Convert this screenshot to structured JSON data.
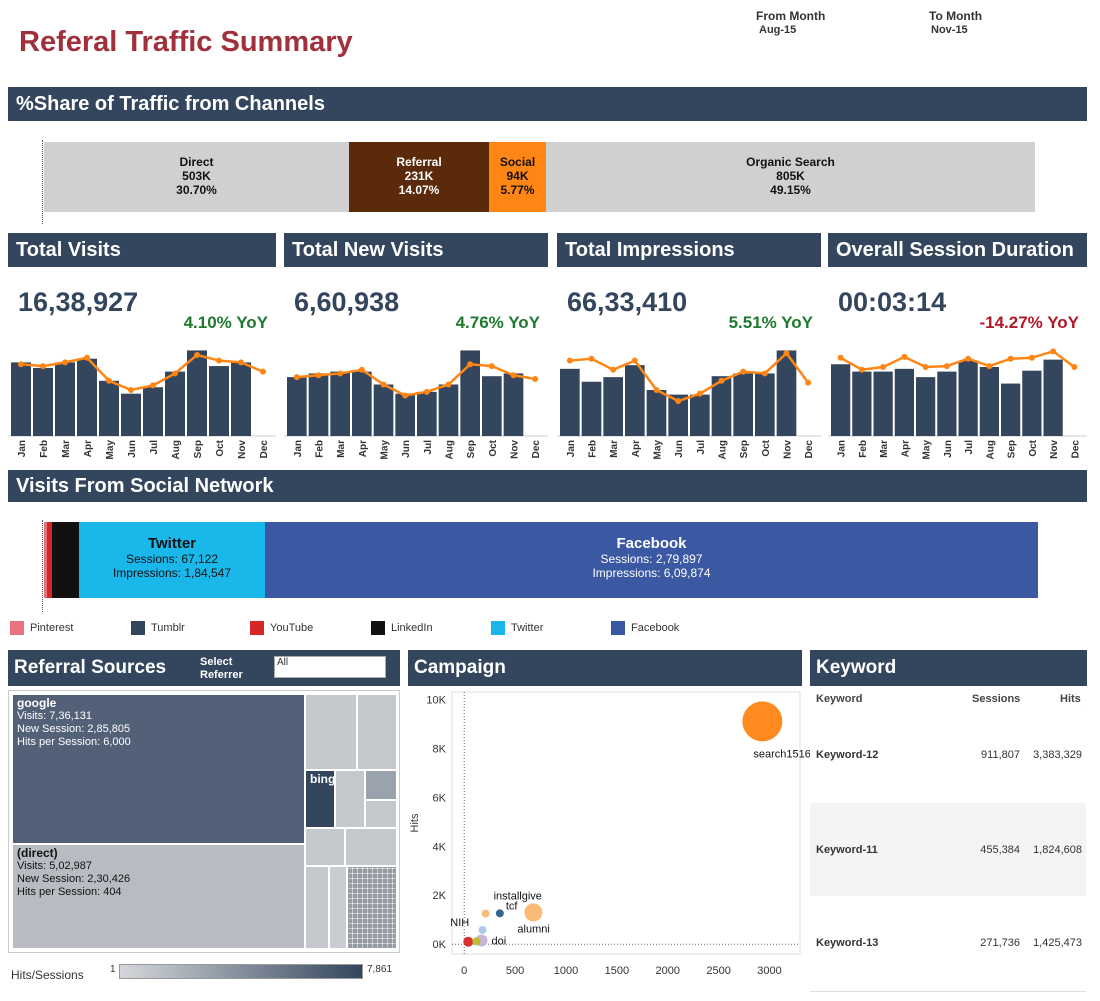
{
  "title": "Referal Traffic Summary",
  "from_month": {
    "label": "From Month",
    "value": "Aug-15"
  },
  "to_month": {
    "label": "To Month",
    "value": "Nov-15"
  },
  "share_section": {
    "header": "%Share of Traffic from Channels",
    "segments": [
      {
        "name": "Direct",
        "value": "503K",
        "pct": "30.70%",
        "share": 30.7,
        "color": "#d0d0d0"
      },
      {
        "name": "Referral",
        "value": "231K",
        "pct": "14.07%",
        "share": 14.07,
        "color": "#5a2a0b"
      },
      {
        "name": "Social",
        "value": "94K",
        "pct": "5.77%",
        "share": 5.77,
        "color": "#ff8514"
      },
      {
        "name": "Organic Search",
        "value": "805K",
        "pct": "49.15%",
        "share": 49.15,
        "color": "#d0d0d0"
      }
    ]
  },
  "kpis": [
    {
      "title": "Total Visits",
      "value": "16,38,927",
      "yoy": "4.10% YoY",
      "yoy_color": "#1e7a2e"
    },
    {
      "title": "Total New Visits",
      "value": "6,60,938",
      "yoy": "4.76% YoY",
      "yoy_color": "#1e7a2e"
    },
    {
      "title": "Total Impressions",
      "value": "66,33,410",
      "yoy": "5.51% YoY",
      "yoy_color": "#1e7a2e"
    },
    {
      "title": "Overall Session Duration",
      "value": "00:03:14",
      "yoy": "-14.27% YoY",
      "yoy_color": "#b0182a"
    }
  ],
  "chart_data": [
    {
      "type": "bar",
      "categories": [
        "Jan",
        "Feb",
        "Mar",
        "Apr",
        "May",
        "Jun",
        "Jul",
        "Aug",
        "Sep",
        "Oct",
        "Nov",
        "Dec"
      ],
      "series": [
        {
          "values": [
            0.8,
            0.74,
            0.8,
            0.84,
            0.6,
            0.46,
            0.53,
            0.7,
            0.93,
            0.76,
            0.8,
            null
          ]
        },
        {
          "values": [
            0.78,
            0.76,
            0.8,
            0.85,
            0.6,
            0.5,
            0.55,
            0.68,
            0.88,
            0.82,
            0.8,
            0.7
          ]
        }
      ]
    },
    {
      "type": "bar",
      "categories": [
        "Jan",
        "Feb",
        "Mar",
        "Apr",
        "May",
        "Jun",
        "Jul",
        "Aug",
        "Sep",
        "Oct",
        "Nov",
        "Dec"
      ],
      "series": [
        {
          "values": [
            0.64,
            0.68,
            0.7,
            0.7,
            0.56,
            0.46,
            0.48,
            0.56,
            0.93,
            0.65,
            0.68,
            null
          ]
        },
        {
          "values": [
            0.64,
            0.66,
            0.68,
            0.72,
            0.56,
            0.44,
            0.48,
            0.56,
            0.78,
            0.76,
            0.66,
            0.62
          ]
        }
      ]
    },
    {
      "type": "bar",
      "categories": [
        "Jan",
        "Feb",
        "Mar",
        "Apr",
        "May",
        "Jun",
        "Jul",
        "Aug",
        "Sep",
        "Oct",
        "Nov",
        "Dec"
      ],
      "series": [
        {
          "values": [
            0.73,
            0.59,
            0.64,
            0.77,
            0.5,
            0.45,
            0.45,
            0.65,
            0.68,
            0.68,
            0.93,
            null
          ]
        },
        {
          "values": [
            0.82,
            0.84,
            0.72,
            0.82,
            0.5,
            0.38,
            0.46,
            0.6,
            0.7,
            0.68,
            0.9,
            0.58
          ]
        }
      ]
    },
    {
      "type": "bar",
      "categories": [
        "Jan",
        "Feb",
        "Mar",
        "Apr",
        "May",
        "Jun",
        "Jul",
        "Aug",
        "Sep",
        "Oct",
        "Nov",
        "Dec"
      ],
      "series": [
        {
          "values": [
            0.78,
            0.7,
            0.7,
            0.73,
            0.64,
            0.7,
            0.82,
            0.75,
            0.57,
            0.71,
            0.83,
            null
          ]
        },
        {
          "values": [
            0.85,
            0.72,
            0.75,
            0.86,
            0.75,
            0.76,
            0.84,
            0.76,
            0.84,
            0.85,
            0.92,
            0.75
          ]
        }
      ]
    },
    {
      "type": "scatter",
      "xlabel": "",
      "ylabel": "Hits",
      "xlim": [
        -120,
        3300
      ],
      "ylim": [
        -400,
        10300
      ],
      "x_ticks": [
        "0",
        "500",
        "1000",
        "1500",
        "2000",
        "2500",
        "3000"
      ],
      "y_ticks": [
        "0K",
        "2K",
        "4K",
        "6K",
        "8K",
        "10K"
      ],
      "points": [
        {
          "label": "search1516",
          "x": 2930,
          "y": 9100,
          "color": "#ff8514",
          "size": 20
        },
        {
          "label": "alumni",
          "x": 680,
          "y": 1300,
          "color": "#fcb671",
          "size": 9
        },
        {
          "label": "tcf",
          "x": 350,
          "y": 1260,
          "color": "#2b5c8a",
          "size": 4
        },
        {
          "label": "installgive",
          "x": 210,
          "y": 1250,
          "color": "#fcb671",
          "size": 4
        },
        {
          "label": "NIH",
          "x": 40,
          "y": 100,
          "color": "#d62728",
          "size": 5
        },
        {
          "label": "doi",
          "x": 170,
          "y": 150,
          "color": "#c5b0d5",
          "size": 6
        },
        {
          "label": "",
          "x": 180,
          "y": 580,
          "color": "#aec7e8",
          "size": 4
        },
        {
          "label": "",
          "x": 120,
          "y": 120,
          "color": "#bcbd22",
          "size": 4
        }
      ]
    }
  ],
  "social_section": {
    "header": "Visits From Social Network",
    "bars": [
      {
        "name": "Twitter",
        "sessions": "Sessions: 67,122",
        "impressions": "Impressions: 1,84,547"
      },
      {
        "name": "Facebook",
        "sessions": "Sessions: 2,79,897",
        "impressions": "Impressions: 6,09,874"
      }
    ],
    "legend": [
      {
        "label": "Pinterest",
        "color": "#e8737e"
      },
      {
        "label": "Tumblr",
        "color": "#33465d"
      },
      {
        "label": "YouTube",
        "color": "#d62728"
      },
      {
        "label": "LinkedIn",
        "color": "#111111"
      },
      {
        "label": "Twitter",
        "color": "#1ab7ea"
      },
      {
        "label": "Facebook",
        "color": "#3b58a3"
      }
    ]
  },
  "referral": {
    "header": "Referral Sources",
    "select_label": "Select Referrer",
    "select_value": "All",
    "google": {
      "name": "google",
      "visits": "Visits: 7,36,131",
      "new": "New Session: 2,85,805",
      "hps": "Hits per Session: 6,000"
    },
    "bing": {
      "name": "bing"
    },
    "direct": {
      "name": "(direct)",
      "visits": "Visits: 5,02,987",
      "new": "New Session: 2,30,426",
      "hps": "Hits per Session: 404"
    },
    "scale_label": "Hits/Sessions",
    "scale_min": "1",
    "scale_max": "7,861"
  },
  "campaign": {
    "header": "Campaign"
  },
  "keyword": {
    "header": "Keyword",
    "cols": [
      "Keyword",
      "Sessions",
      "Hits"
    ],
    "rows": [
      {
        "keyword": "Keyword-12",
        "sessions": "911,807",
        "hits": "3,383,329"
      },
      {
        "keyword": "Keyword-11",
        "sessions": "455,384",
        "hits": "1,824,608"
      },
      {
        "keyword": "Keyword-13",
        "sessions": "271,736",
        "hits": "1,425,473"
      }
    ]
  }
}
